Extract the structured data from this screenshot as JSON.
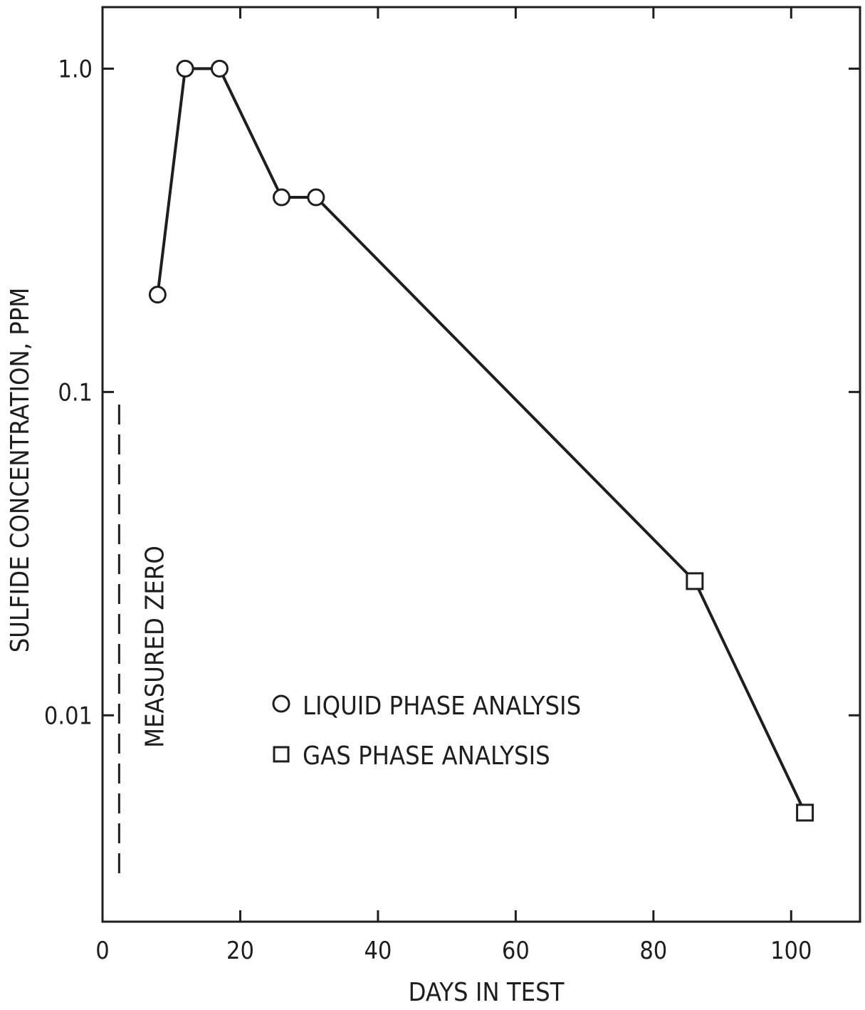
{
  "chart_data": {
    "type": "line",
    "xlabel": "DAYS IN TEST",
    "ylabel": "SULFIDE CONCENTRATION, PPM",
    "xlim": [
      0,
      110
    ],
    "ylim": [
      0.0023,
      1.55
    ],
    "yscale": "log",
    "grid": false,
    "x_ticks": [
      0,
      20,
      40,
      60,
      80,
      100
    ],
    "x_tick_labels": [
      "0",
      "20",
      "40",
      "60",
      "80",
      "100"
    ],
    "y_ticks": [
      1.0,
      0.1,
      0.01
    ],
    "y_tick_labels": [
      "1.0",
      "0.1",
      "0.01"
    ],
    "series": [
      {
        "name": "LIQUID PHASE ANALYSIS",
        "marker": "circle",
        "x": [
          8,
          12,
          17,
          26,
          31
        ],
        "y": [
          0.2,
          1.0,
          1.0,
          0.4,
          0.4
        ]
      },
      {
        "name": "GAS PHASE ANALYSIS",
        "marker": "square",
        "x": [
          86,
          102
        ],
        "y": [
          0.026,
          0.005
        ]
      }
    ],
    "annotations": [
      {
        "text": "MEASURED ZERO",
        "x": 2
      }
    ],
    "legend": {
      "position": "center-bottom",
      "entries": [
        {
          "marker": "circle",
          "label": "LIQUID PHASE ANALYSIS"
        },
        {
          "marker": "square",
          "label": "GAS PHASE ANALYSIS"
        }
      ]
    },
    "colors": {
      "ink": "#1e1e1e",
      "background": "#ffffff"
    }
  }
}
